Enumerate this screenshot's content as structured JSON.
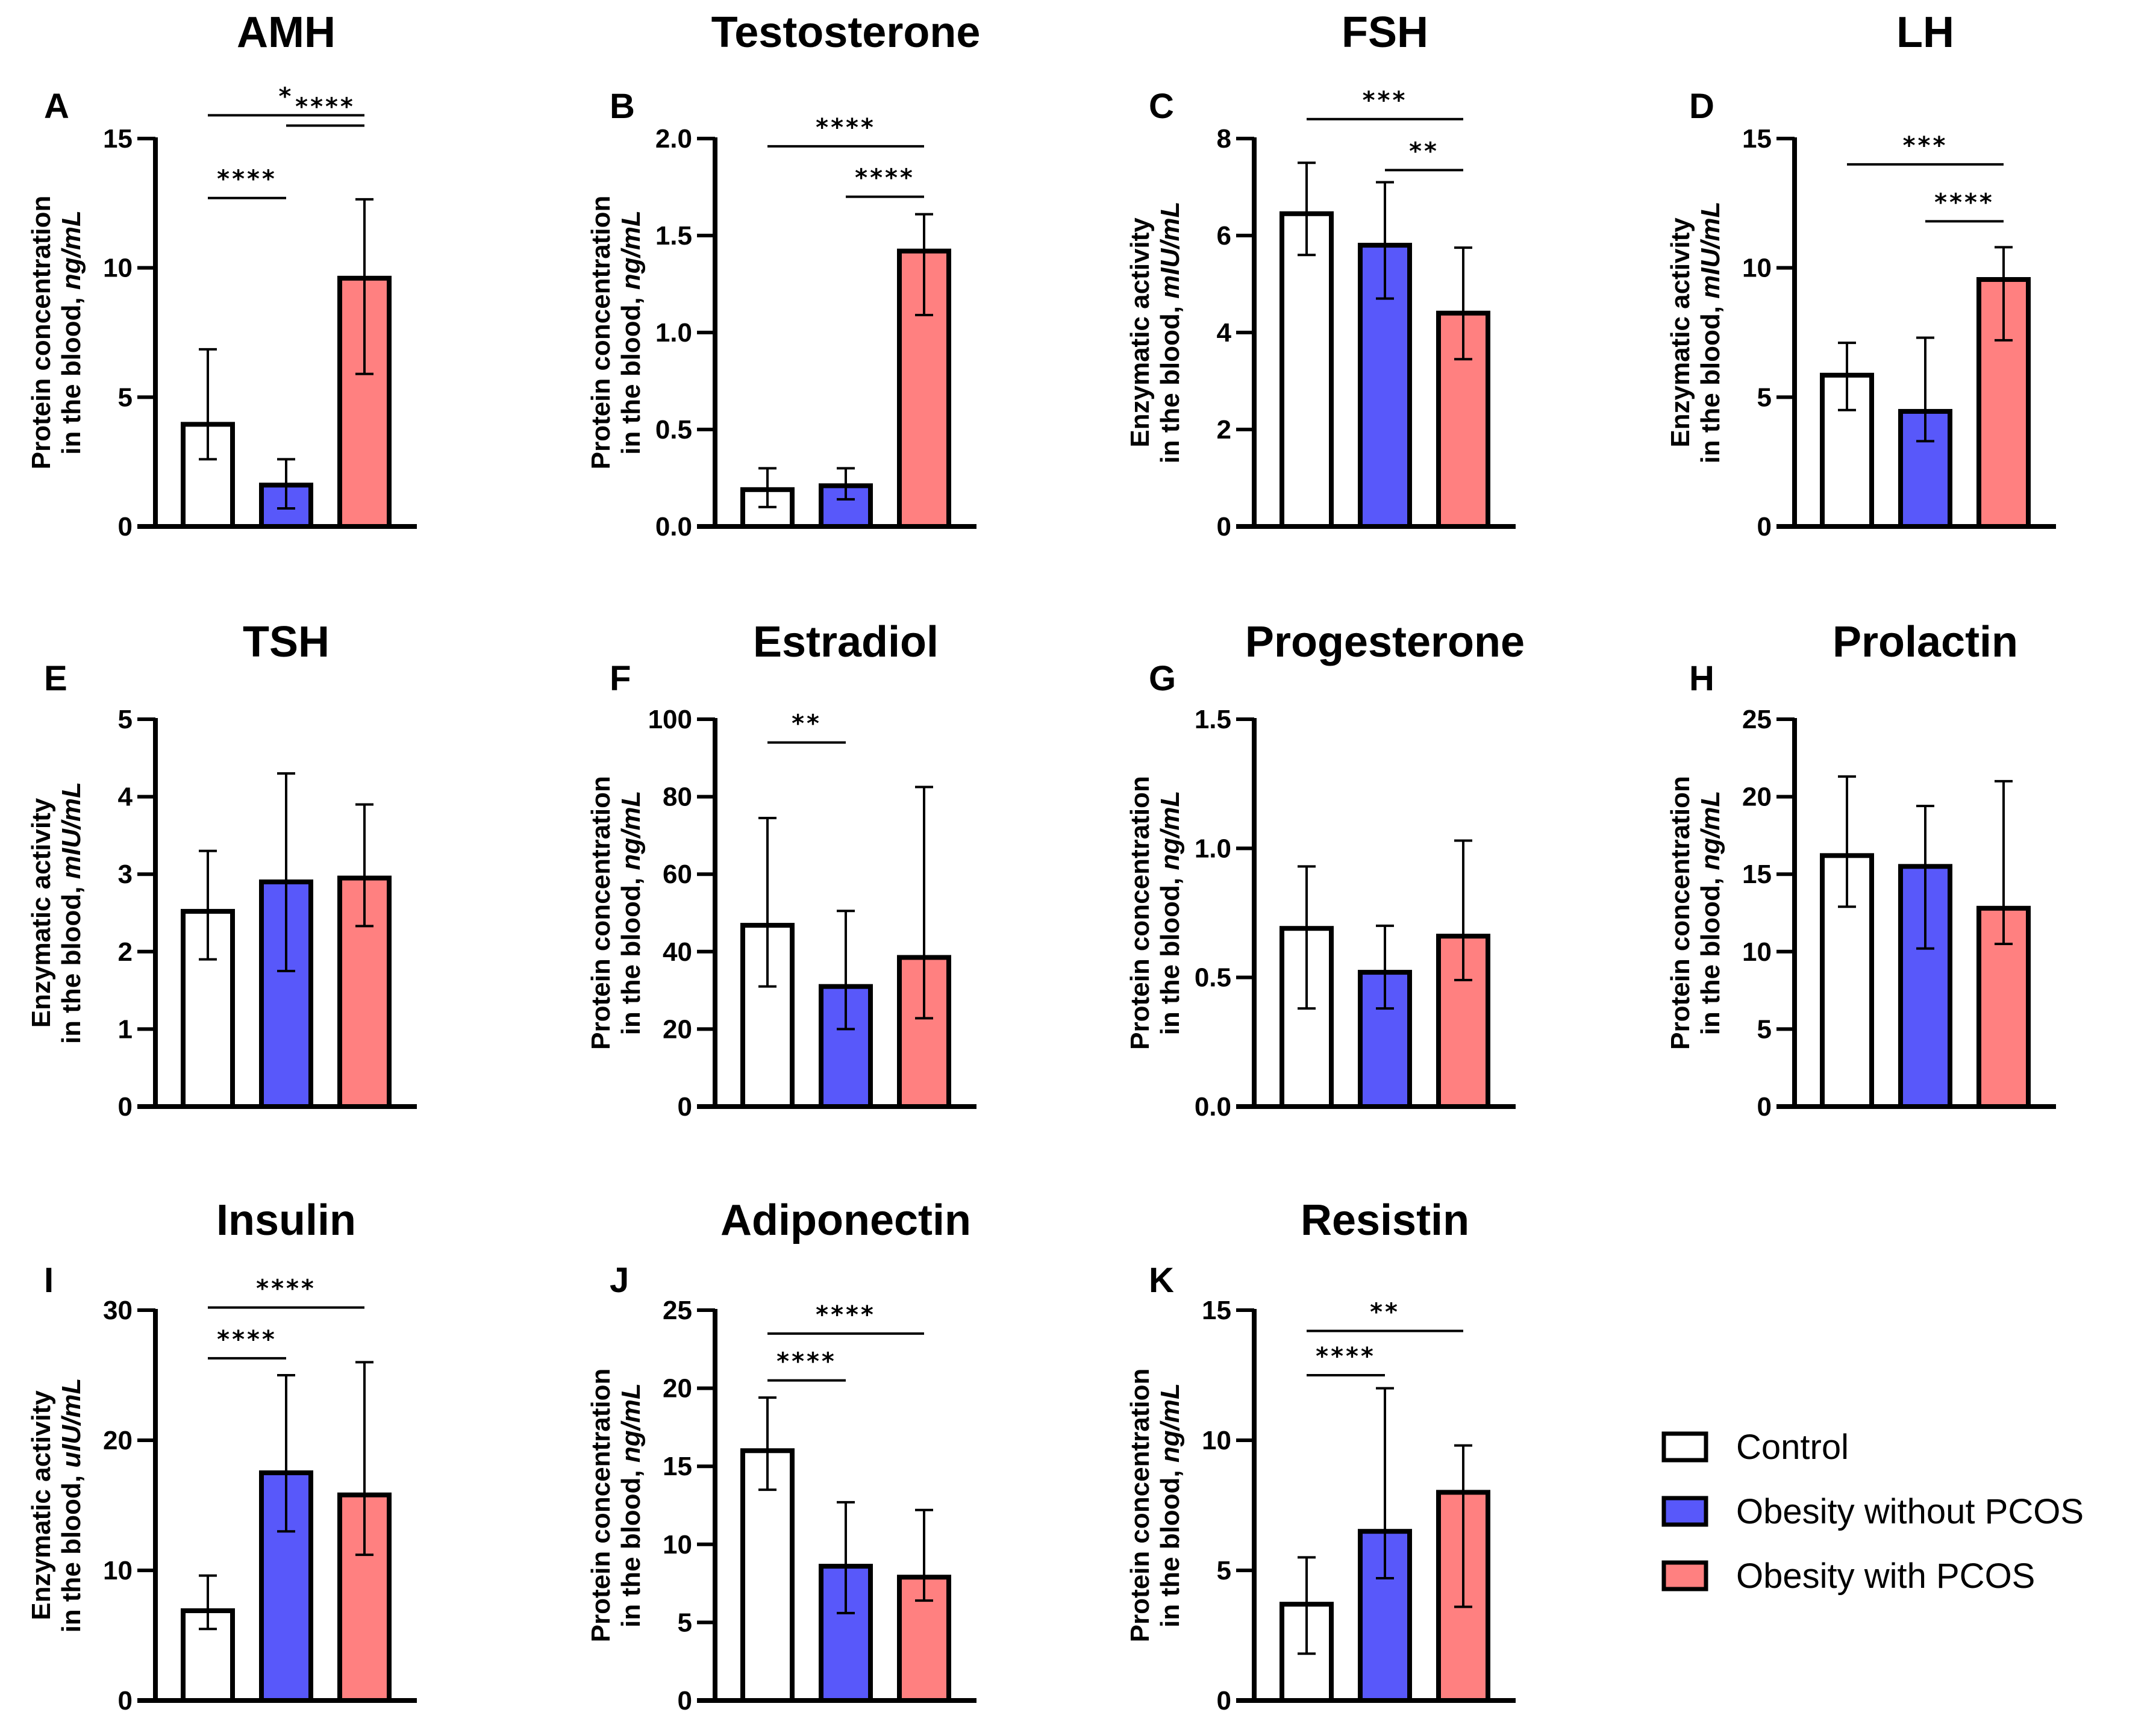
{
  "chart_data": {
    "type": "bar",
    "groups": [
      {
        "name": "Control",
        "color": "#FFFFFF"
      },
      {
        "name": "Obesity without PCOS",
        "color": "#5858FA"
      },
      {
        "name": "Obesity with PCOS",
        "color": "#FF8080"
      }
    ],
    "legend": {
      "position": "bottom-right",
      "items": [
        "Control",
        "Obesity without PCOS",
        "Obesity with PCOS"
      ]
    },
    "panels": [
      {
        "letter": "A",
        "title": "AMH",
        "ylabel_main": "Protein concentration",
        "ylabel_prefix": "in the blood, ",
        "ylabel_unit": "ng/mL",
        "ylim": [
          0,
          15
        ],
        "ticks": [
          0,
          5,
          10,
          15
        ],
        "tick_labels": [
          "0",
          "5",
          "10",
          "15"
        ],
        "means": [
          3.95,
          1.6,
          9.6
        ],
        "err_low": [
          2.6,
          0.7,
          5.9
        ],
        "err_high": [
          6.85,
          2.6,
          12.65
        ],
        "significance": [
          {
            "from": 0,
            "to": 2,
            "label": "*",
            "level": 15.9
          },
          {
            "from": 1,
            "to": 2,
            "label": "****",
            "level": 15.5,
            "stacked": true
          },
          {
            "from": 0,
            "to": 1,
            "label": "****",
            "level": 12.7
          }
        ]
      },
      {
        "letter": "B",
        "title": "Testosterone",
        "ylabel_main": "Protein concentration",
        "ylabel_prefix": "in the blood, ",
        "ylabel_unit": "ng/mL",
        "ylim": [
          0,
          2.0
        ],
        "ticks": [
          0,
          0.5,
          1.0,
          1.5,
          2.0
        ],
        "tick_labels": [
          "0.0",
          "0.5",
          "1.0",
          "1.5",
          "2.0"
        ],
        "means": [
          0.19,
          0.21,
          1.42
        ],
        "err_low": [
          0.1,
          0.14,
          1.09
        ],
        "err_high": [
          0.3,
          0.3,
          1.61
        ],
        "significance": [
          {
            "from": 0,
            "to": 2,
            "label": "****",
            "level": 1.96
          },
          {
            "from": 1,
            "to": 2,
            "label": "****",
            "level": 1.7
          }
        ]
      },
      {
        "letter": "C",
        "title": "FSH",
        "ylabel_main": "Enzymatic activity",
        "ylabel_prefix": "in the blood, ",
        "ylabel_unit": "mIU/mL",
        "ylim": [
          0,
          8
        ],
        "ticks": [
          0,
          2,
          4,
          6,
          8
        ],
        "tick_labels": [
          "0",
          "2",
          "4",
          "6",
          "8"
        ],
        "means": [
          6.45,
          5.8,
          4.4
        ],
        "err_low": [
          5.6,
          4.7,
          3.45
        ],
        "err_high": [
          7.5,
          7.1,
          5.75
        ],
        "significance": [
          {
            "from": 0,
            "to": 2,
            "label": "***",
            "level": 8.4
          },
          {
            "from": 1,
            "to": 2,
            "label": "**",
            "level": 7.35
          }
        ]
      },
      {
        "letter": "D",
        "title": "LH",
        "ylabel_main": "Enzymatic activity",
        "ylabel_prefix": "in the blood, ",
        "ylabel_unit": "mIU/mL",
        "ylim": [
          0,
          15
        ],
        "ticks": [
          0,
          5,
          10,
          15
        ],
        "tick_labels": [
          "0",
          "5",
          "10",
          "15"
        ],
        "means": [
          5.85,
          4.45,
          9.55
        ],
        "err_low": [
          4.5,
          3.3,
          7.2
        ],
        "err_high": [
          7.1,
          7.3,
          10.8
        ],
        "significance": [
          {
            "from": 0,
            "to": 2,
            "label": "***",
            "level": 14.0
          },
          {
            "from": 1,
            "to": 2,
            "label": "****",
            "level": 11.8
          }
        ]
      },
      {
        "letter": "E",
        "title": "TSH",
        "ylabel_main": "Enzymatic activity",
        "ylabel_prefix": "in the blood, ",
        "ylabel_unit": "mIU/mL",
        "ylim": [
          0,
          5
        ],
        "ticks": [
          0,
          1,
          2,
          3,
          4,
          5
        ],
        "tick_labels": [
          "0",
          "1",
          "2",
          "3",
          "4",
          "5"
        ],
        "means": [
          2.52,
          2.9,
          2.95
        ],
        "err_low": [
          1.9,
          1.75,
          2.33
        ],
        "err_high": [
          3.3,
          4.3,
          3.9
        ],
        "significance": []
      },
      {
        "letter": "F",
        "title": "Estradiol",
        "ylabel_main": "Protein concentration",
        "ylabel_prefix": "in the blood, ",
        "ylabel_unit": "ng/mL",
        "ylim": [
          0,
          100
        ],
        "ticks": [
          0,
          20,
          40,
          60,
          80,
          100
        ],
        "tick_labels": [
          "0",
          "20",
          "40",
          "60",
          "80",
          "100"
        ],
        "means": [
          46.8,
          31.0,
          38.5
        ],
        "err_low": [
          31.0,
          20.0,
          22.8
        ],
        "err_high": [
          74.5,
          50.5,
          82.5
        ],
        "significance": [
          {
            "from": 0,
            "to": 1,
            "label": "**",
            "level": 94.0
          }
        ]
      },
      {
        "letter": "G",
        "title": "Progesterone",
        "ylabel_main": "Protein concentration",
        "ylabel_prefix": "in the blood, ",
        "ylabel_unit": "ng/mL",
        "ylim": [
          0,
          1.5
        ],
        "ticks": [
          0,
          0.5,
          1.0,
          1.5
        ],
        "tick_labels": [
          "0.0",
          "0.5",
          "1.0",
          "1.5"
        ],
        "means": [
          0.69,
          0.52,
          0.66
        ],
        "err_low": [
          0.38,
          0.38,
          0.49
        ],
        "err_high": [
          0.93,
          0.7,
          1.03
        ],
        "significance": []
      },
      {
        "letter": "H",
        "title": "Prolactin",
        "ylabel_main": "Protein concentration",
        "ylabel_prefix": "in the blood, ",
        "ylabel_unit": "ng/mL",
        "ylim": [
          0,
          25
        ],
        "ticks": [
          0,
          5,
          10,
          15,
          20,
          25
        ],
        "tick_labels": [
          "0",
          "5",
          "10",
          "15",
          "20",
          "25"
        ],
        "means": [
          16.2,
          15.5,
          12.8
        ],
        "err_low": [
          12.9,
          10.2,
          10.5
        ],
        "err_high": [
          21.3,
          19.4,
          21.0
        ],
        "significance": []
      },
      {
        "letter": "I",
        "title": "Insulin",
        "ylabel_main": "Enzymatic activity",
        "ylabel_prefix": "in the blood, ",
        "ylabel_unit": "uIU/mL",
        "ylim": [
          0,
          30
        ],
        "ticks": [
          0,
          10,
          20,
          30
        ],
        "tick_labels": [
          "0",
          "10",
          "20",
          "30"
        ],
        "means": [
          6.9,
          17.5,
          15.8
        ],
        "err_low": [
          5.5,
          13.0,
          11.2
        ],
        "err_high": [
          9.6,
          25.0,
          26.0
        ],
        "significance": [
          {
            "from": 0,
            "to": 2,
            "label": "****",
            "level": 30.2
          },
          {
            "from": 0,
            "to": 1,
            "label": "****",
            "level": 26.3
          }
        ]
      },
      {
        "letter": "J",
        "title": "Adiponectin",
        "ylabel_main": "Protein concentration",
        "ylabel_prefix": "in the blood, ",
        "ylabel_unit": "ng/mL",
        "ylim": [
          0,
          25
        ],
        "ticks": [
          0,
          5,
          10,
          15,
          20,
          25
        ],
        "tick_labels": [
          "0",
          "5",
          "10",
          "15",
          "20",
          "25"
        ],
        "means": [
          16.0,
          8.6,
          7.9
        ],
        "err_low": [
          13.5,
          5.6,
          6.4
        ],
        "err_high": [
          19.4,
          12.7,
          12.2
        ],
        "significance": [
          {
            "from": 0,
            "to": 2,
            "label": "****",
            "level": 23.5
          },
          {
            "from": 0,
            "to": 1,
            "label": "****",
            "level": 20.5
          }
        ]
      },
      {
        "letter": "K",
        "title": "Resistin",
        "ylabel_main": "Protein concentration",
        "ylabel_prefix": "in the blood, ",
        "ylabel_unit": "ng/mL",
        "ylim": [
          0,
          15
        ],
        "ticks": [
          0,
          5,
          10,
          15
        ],
        "tick_labels": [
          "0",
          "5",
          "10",
          "15"
        ],
        "means": [
          3.7,
          6.5,
          8.0
        ],
        "err_low": [
          1.8,
          4.7,
          3.6
        ],
        "err_high": [
          5.5,
          12.0,
          9.8
        ],
        "significance": [
          {
            "from": 0,
            "to": 2,
            "label": "**",
            "level": 14.2
          },
          {
            "from": 0,
            "to": 1,
            "label": "****",
            "level": 12.5
          }
        ]
      }
    ]
  }
}
